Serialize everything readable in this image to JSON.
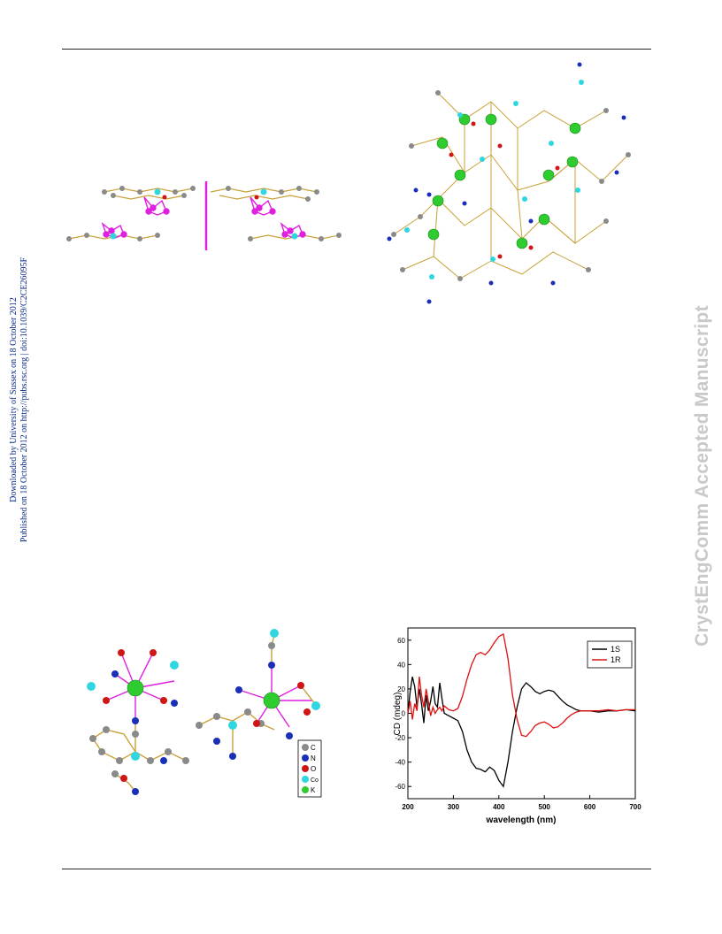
{
  "side_note": {
    "line1": "Downloaded by University of Sussex on 18 October 2012",
    "line2": "Published on 18 October 2012 on http://pubs.rsc.org | doi:10.1039/C2CE26095F"
  },
  "watermark": "CrystEngComm Accepted Manuscript",
  "legend_atoms": [
    {
      "label": "C",
      "color": "#8a8a8a"
    },
    {
      "label": "N",
      "color": "#1a2fb8"
    },
    {
      "label": "O",
      "color": "#d01515"
    },
    {
      "label": "Co",
      "color": "#2fd6e0"
    },
    {
      "label": "K",
      "color": "#2ecc2e"
    }
  ],
  "chart_data": {
    "type": "line",
    "xlabel": "wavelength (nm)",
    "ylabel": "CD (mdeg)",
    "xlim": [
      200,
      700
    ],
    "ylim": [
      -70,
      70
    ],
    "xticks": [
      200,
      300,
      400,
      500,
      600,
      700
    ],
    "yticks": [
      60,
      40,
      20,
      0,
      -20,
      -40,
      -60
    ],
    "legend_position": "top-right",
    "series": [
      {
        "name": "1S",
        "color": "#000000",
        "x": [
          200,
          205,
          210,
          215,
          220,
          225,
          230,
          235,
          240,
          245,
          250,
          255,
          260,
          265,
          270,
          275,
          280,
          290,
          300,
          310,
          320,
          330,
          340,
          350,
          360,
          370,
          380,
          390,
          400,
          410,
          420,
          430,
          440,
          450,
          460,
          470,
          480,
          490,
          500,
          510,
          520,
          530,
          540,
          550,
          560,
          570,
          580,
          600,
          620,
          640,
          660,
          680,
          700
        ],
        "y": [
          0,
          18,
          30,
          22,
          5,
          20,
          8,
          -8,
          15,
          2,
          10,
          22,
          8,
          5,
          25,
          12,
          0,
          -2,
          -4,
          -6,
          -15,
          -30,
          -40,
          -45,
          -46,
          -48,
          -44,
          -47,
          -55,
          -60,
          -40,
          -15,
          5,
          20,
          25,
          22,
          18,
          16,
          18,
          19,
          18,
          14,
          10,
          7,
          5,
          3,
          2,
          2,
          1,
          2,
          2,
          3,
          2
        ]
      },
      {
        "name": "1R",
        "color": "#e01010",
        "x": [
          200,
          205,
          210,
          215,
          220,
          225,
          230,
          235,
          240,
          245,
          250,
          255,
          260,
          265,
          270,
          275,
          280,
          290,
          300,
          310,
          320,
          330,
          340,
          350,
          360,
          370,
          380,
          390,
          400,
          410,
          420,
          430,
          440,
          450,
          460,
          470,
          480,
          490,
          500,
          510,
          520,
          530,
          540,
          550,
          560,
          570,
          580,
          600,
          620,
          640,
          660,
          680,
          700
        ],
        "y": [
          0,
          10,
          -5,
          8,
          2,
          30,
          15,
          5,
          20,
          10,
          -2,
          5,
          0,
          3,
          5,
          2,
          6,
          3,
          2,
          4,
          14,
          28,
          40,
          48,
          50,
          48,
          52,
          58,
          63,
          65,
          45,
          15,
          -5,
          -18,
          -19,
          -15,
          -10,
          -8,
          -7,
          -9,
          -12,
          -11,
          -8,
          -4,
          -1,
          1,
          2,
          2,
          2,
          3,
          2,
          3,
          3
        ]
      }
    ]
  }
}
